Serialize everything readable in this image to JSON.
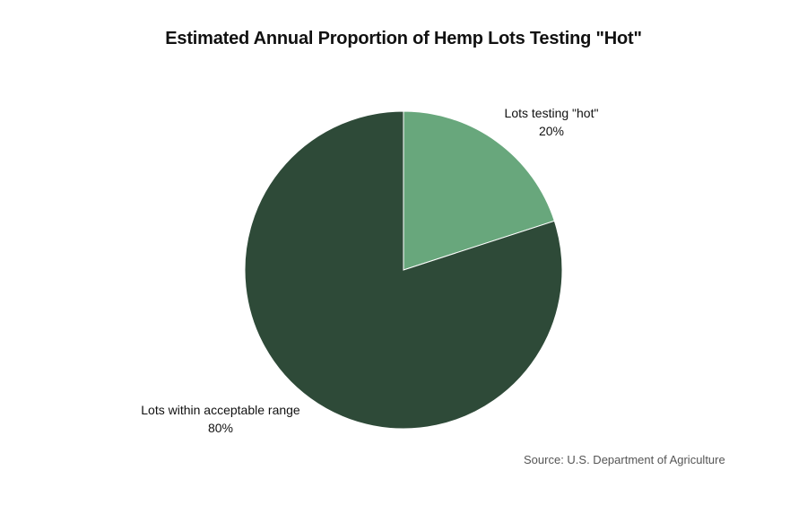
{
  "chart_data": {
    "type": "pie",
    "title": "Estimated Annual Proportion of Hemp Lots Testing \"Hot\"",
    "slices": [
      {
        "label": "Lots testing \"hot\"",
        "value": 20,
        "value_label": "20%",
        "color": "#68a77c"
      },
      {
        "label": "Lots within acceptable range",
        "value": 80,
        "value_label": "80%",
        "color": "#2e4a38"
      }
    ],
    "start_angle": "12 o'clock",
    "direction": "clockwise",
    "legend": "none",
    "source": "Source: U.S. Department of Agriculture"
  }
}
